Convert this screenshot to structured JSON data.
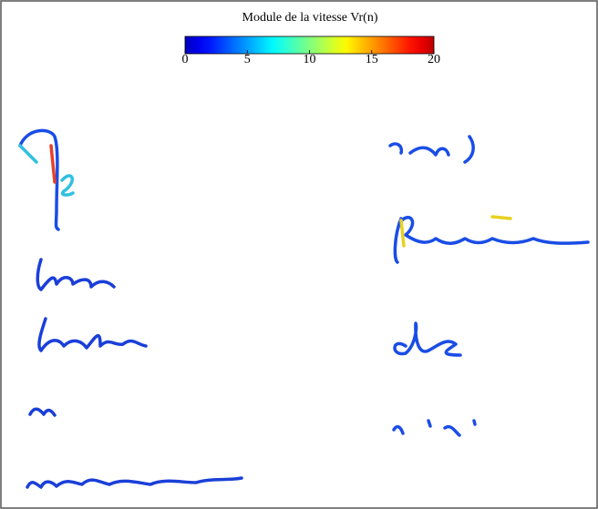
{
  "chart_data": {
    "type": "colorbar",
    "title": "Module de la vitesse Vr(n)",
    "colormap": "jet",
    "clim": [
      0,
      20
    ],
    "cticks": [
      0,
      5,
      10,
      15,
      20
    ]
  }
}
